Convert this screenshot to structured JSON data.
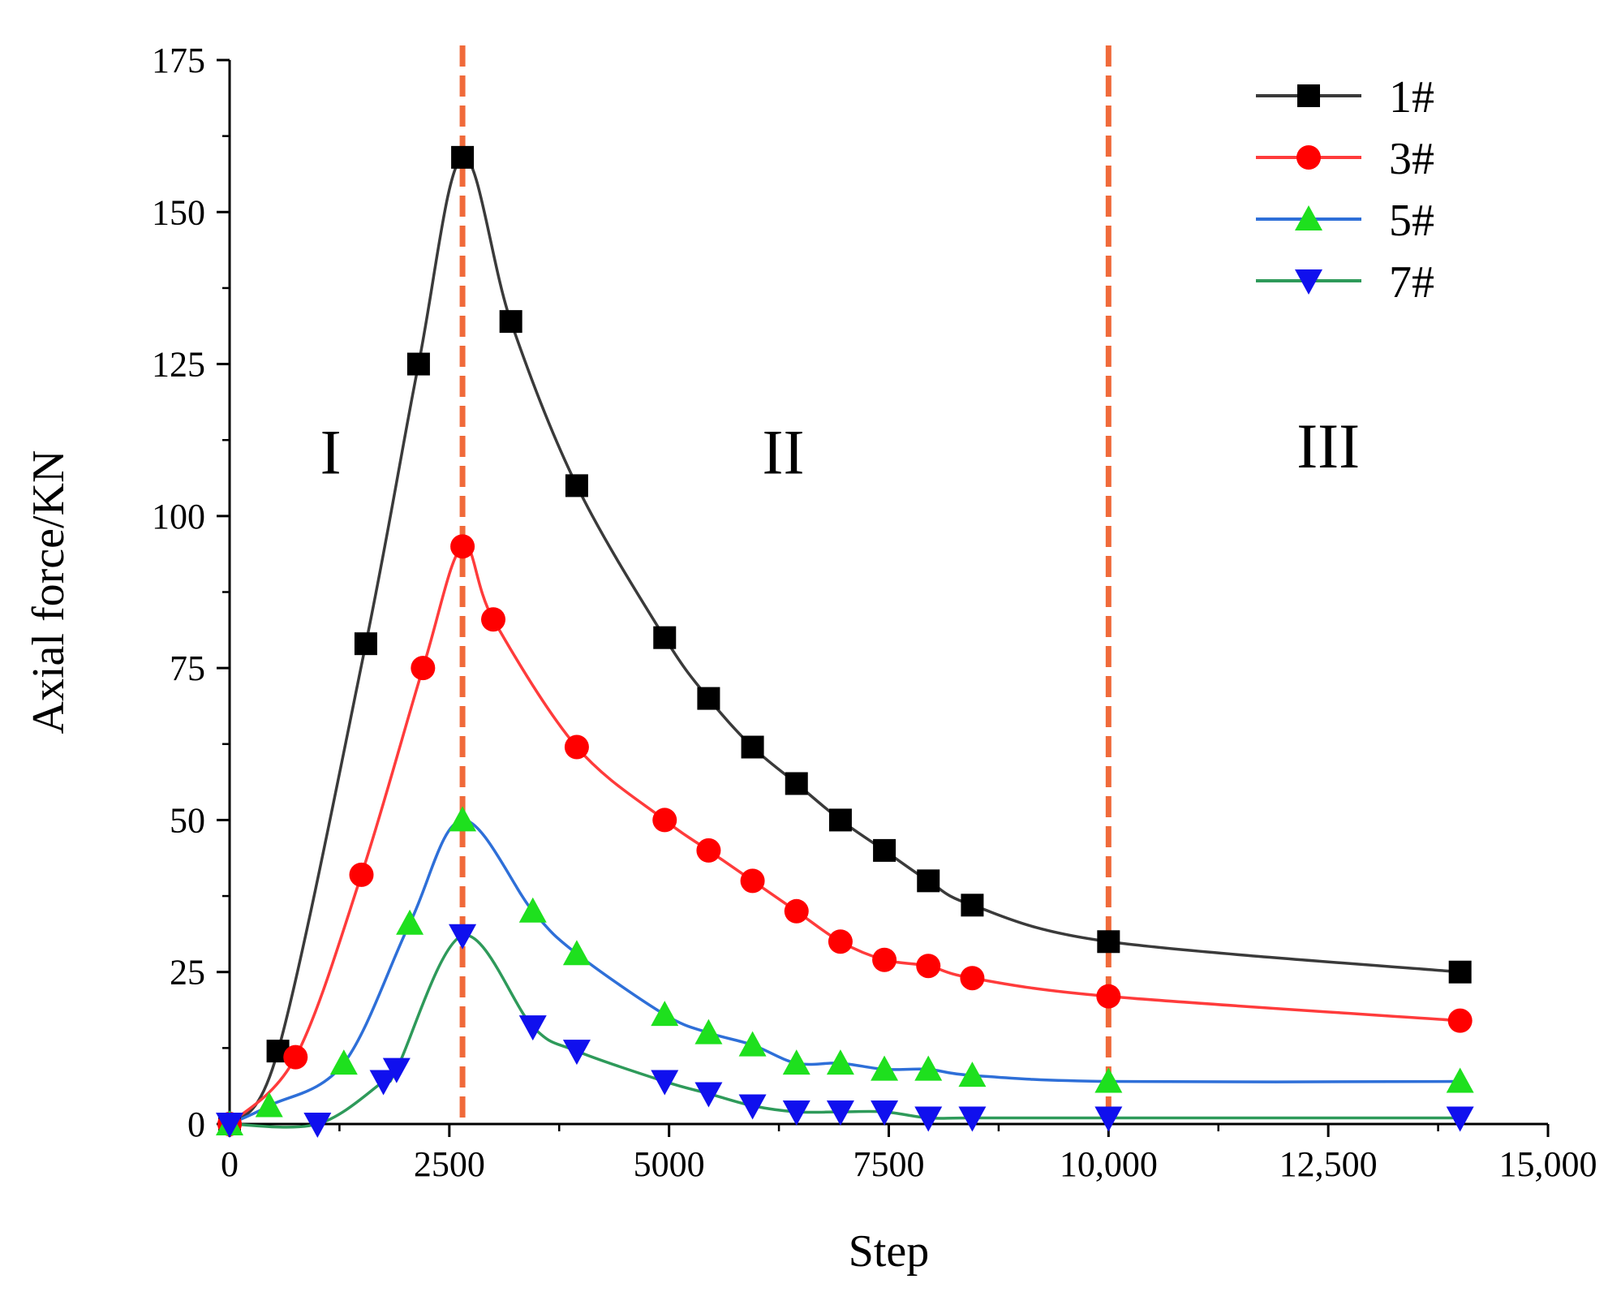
{
  "chart_data": {
    "type": "line",
    "title": "",
    "xlabel": "Step",
    "ylabel": "Axial force/KN",
    "xlim": [
      0,
      15000
    ],
    "ylim": [
      0,
      175
    ],
    "xticks": [
      0,
      2500,
      5000,
      7500,
      10000,
      12500,
      15000
    ],
    "xtick_labels": [
      "0",
      "2500",
      "5000",
      "7500",
      "10,000",
      "12,500",
      "15,000"
    ],
    "yticks": [
      0,
      25,
      50,
      75,
      100,
      125,
      150,
      175
    ],
    "ytick_labels": [
      "0",
      "25",
      "50",
      "75",
      "100",
      "125",
      "150",
      "175"
    ],
    "grid": false,
    "legend_position": "top-right",
    "vlines": [
      {
        "x": 2650,
        "color": "#f06a3a"
      },
      {
        "x": 10000,
        "color": "#f06a3a"
      }
    ],
    "regions": [
      {
        "label": "I",
        "x": 1150,
        "y": 107
      },
      {
        "label": "II",
        "x": 6300,
        "y": 107
      },
      {
        "label": "III",
        "x": 12500,
        "y": 108
      }
    ],
    "series": [
      {
        "name": "1#",
        "color": "#3a3a3a",
        "marker_color": "#000000",
        "marker": "square",
        "x": [
          0,
          550,
          1550,
          2150,
          2650,
          3200,
          3950,
          4950,
          5450,
          5950,
          6450,
          6950,
          7450,
          7950,
          8450,
          10000,
          14000
        ],
        "y": [
          0,
          12,
          79,
          125,
          159,
          132,
          105,
          80,
          70,
          62,
          56,
          50,
          45,
          40,
          36,
          30,
          25
        ]
      },
      {
        "name": "3#",
        "color": "#ff3b3b",
        "marker_color": "#ff0000",
        "marker": "circle",
        "x": [
          0,
          750,
          1500,
          2200,
          2650,
          3000,
          3950,
          4950,
          5450,
          5950,
          6450,
          6950,
          7450,
          7950,
          8450,
          10000,
          14000
        ],
        "y": [
          0,
          11,
          41,
          75,
          95,
          83,
          62,
          50,
          45,
          40,
          35,
          30,
          27,
          26,
          24,
          21,
          17
        ]
      },
      {
        "name": "5#",
        "color": "#2e6fd8",
        "marker_color": "#1ee01e",
        "marker": "triangle-up",
        "x": [
          0,
          450,
          1300,
          2050,
          2650,
          3450,
          3950,
          4950,
          5450,
          5950,
          6450,
          6950,
          7450,
          7950,
          8450,
          10000,
          14000
        ],
        "y": [
          0,
          3,
          10,
          33,
          50,
          35,
          28,
          18,
          15,
          13,
          10,
          10,
          9,
          9,
          8,
          7,
          7
        ]
      },
      {
        "name": "7#",
        "color": "#2e9a5a",
        "marker_color": "#1010ee",
        "marker": "triangle-down",
        "x": [
          0,
          1000,
          1750,
          1900,
          2650,
          3450,
          3950,
          4950,
          5450,
          5950,
          6450,
          6950,
          7450,
          7950,
          8450,
          10000,
          14000
        ],
        "y": [
          0,
          0,
          7,
          9,
          31,
          16,
          12,
          7,
          5,
          3,
          2,
          2,
          2,
          1,
          1,
          1,
          1
        ]
      }
    ]
  }
}
